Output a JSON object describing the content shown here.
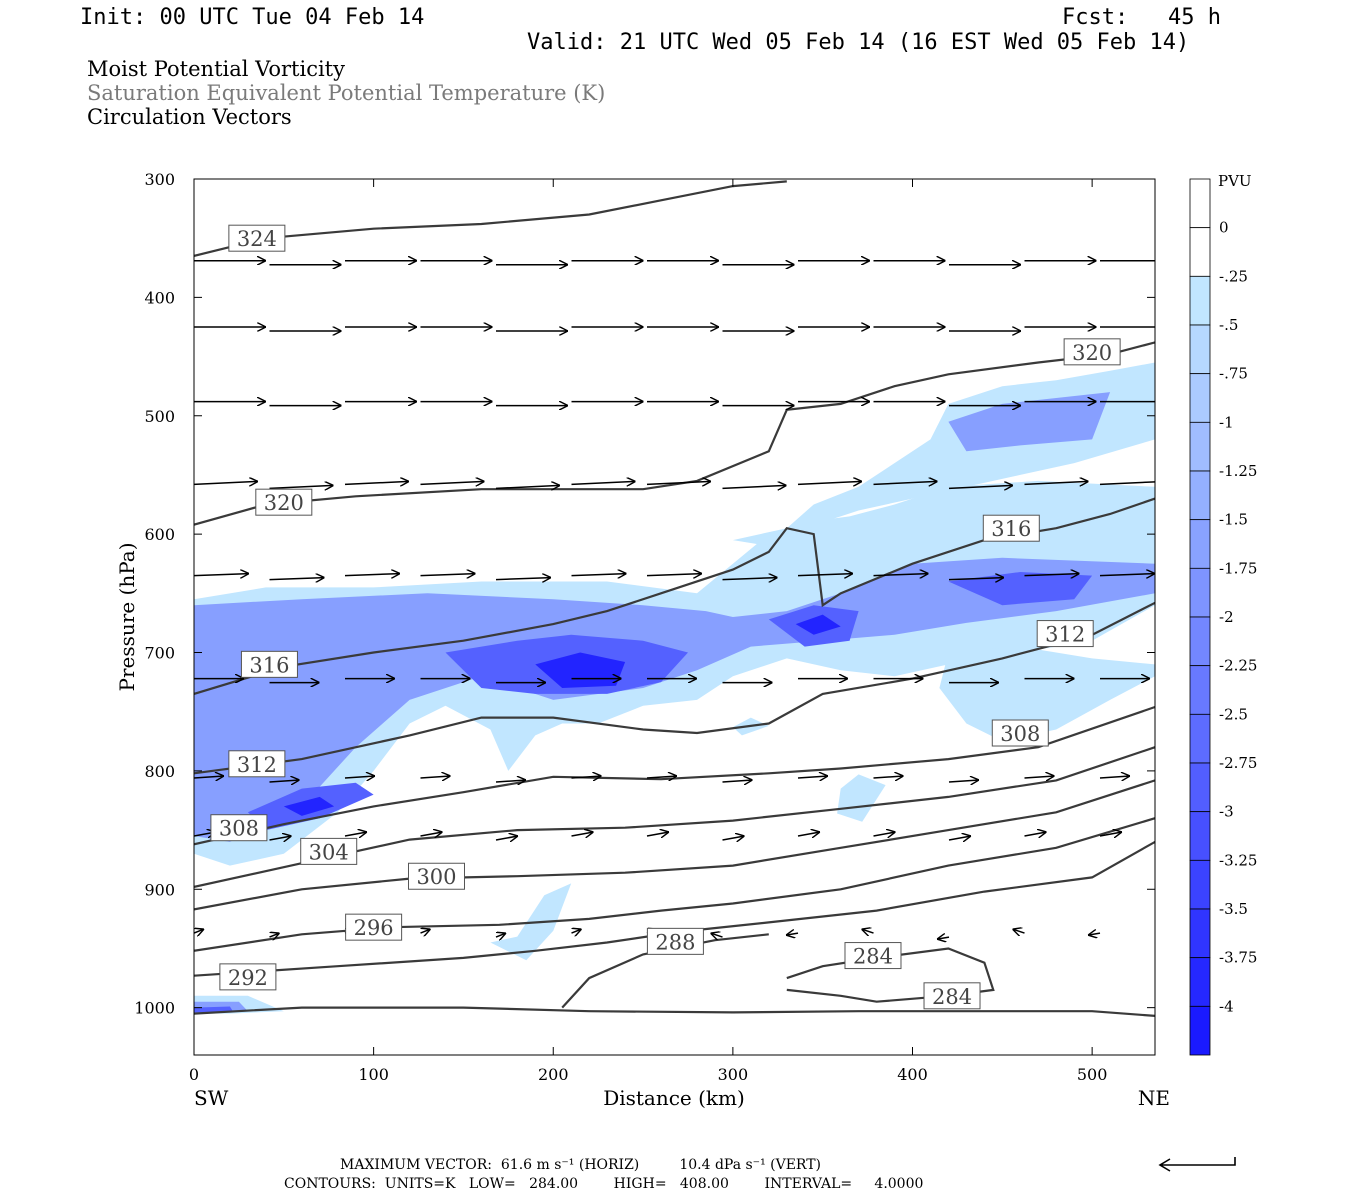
{
  "header": {
    "init": "Init: 00 UTC Tue 04 Feb 14",
    "fcst": "Fcst:   45 h",
    "valid": "Valid: 21 UTC Wed 05 Feb 14 (16 EST Wed 05 Feb 14)"
  },
  "titles": {
    "line1": "Moist Potential Vorticity",
    "line2": "Saturation Equivalent Potential Temperature (K)",
    "line3": "Circulation Vectors"
  },
  "footer": {
    "max_vector": "MAXIMUM VECTOR:  61.6 m s⁻¹ (HORIZ)         10.4 dPa s⁻¹ (VERT)",
    "contours": "CONTOURS:  UNITS=K   LOW=   284.00        HIGH=   408.00        INTERVAL=     4.0000"
  },
  "colors": {
    "shade_light": "#c1e6ff",
    "shade_dark": "#1a1aff",
    "contour": "#3a3a3a",
    "vector": "#000000"
  },
  "chart_data": {
    "type": "contour",
    "xlabel": "Distance (km)",
    "ylabel": "Pressure (hPa)",
    "xlim": [
      0,
      535
    ],
    "ylim": [
      1040,
      300
    ],
    "xticks": [
      0,
      100,
      200,
      300,
      400,
      500
    ],
    "yticks": [
      300,
      400,
      500,
      600,
      700,
      800,
      900,
      1000
    ],
    "endpoint_labels": {
      "left": "SW",
      "right": "NE"
    },
    "colorbar": {
      "title": "PVU",
      "levels": [
        "0",
        "-.25",
        "-.5",
        "-.75",
        "-1",
        "-1.25",
        "-1.5",
        "-1.75",
        "-2",
        "-2.25",
        "-2.5",
        "-2.75",
        "-3",
        "-3.25",
        "-3.5",
        "-3.75",
        "-4"
      ]
    },
    "contour_labels": [
      {
        "value": "324",
        "x": 35,
        "p": 350
      },
      {
        "value": "320",
        "x": 50,
        "p": 573
      },
      {
        "value": "320",
        "x": 500,
        "p": 446
      },
      {
        "value": "316",
        "x": 42,
        "p": 710
      },
      {
        "value": "316",
        "x": 455,
        "p": 595
      },
      {
        "value": "312",
        "x": 35,
        "p": 794
      },
      {
        "value": "312",
        "x": 485,
        "p": 684
      },
      {
        "value": "308",
        "x": 25,
        "p": 848
      },
      {
        "value": "308",
        "x": 460,
        "p": 768
      },
      {
        "value": "304",
        "x": 75,
        "p": 868
      },
      {
        "value": "300",
        "x": 135,
        "p": 889
      },
      {
        "value": "296",
        "x": 100,
        "p": 932
      },
      {
        "value": "292",
        "x": 30,
        "p": 974
      },
      {
        "value": "288",
        "x": 268,
        "p": 944
      },
      {
        "value": "284",
        "x": 378,
        "p": 956
      },
      {
        "value": "284",
        "x": 422,
        "p": 990
      }
    ]
  }
}
